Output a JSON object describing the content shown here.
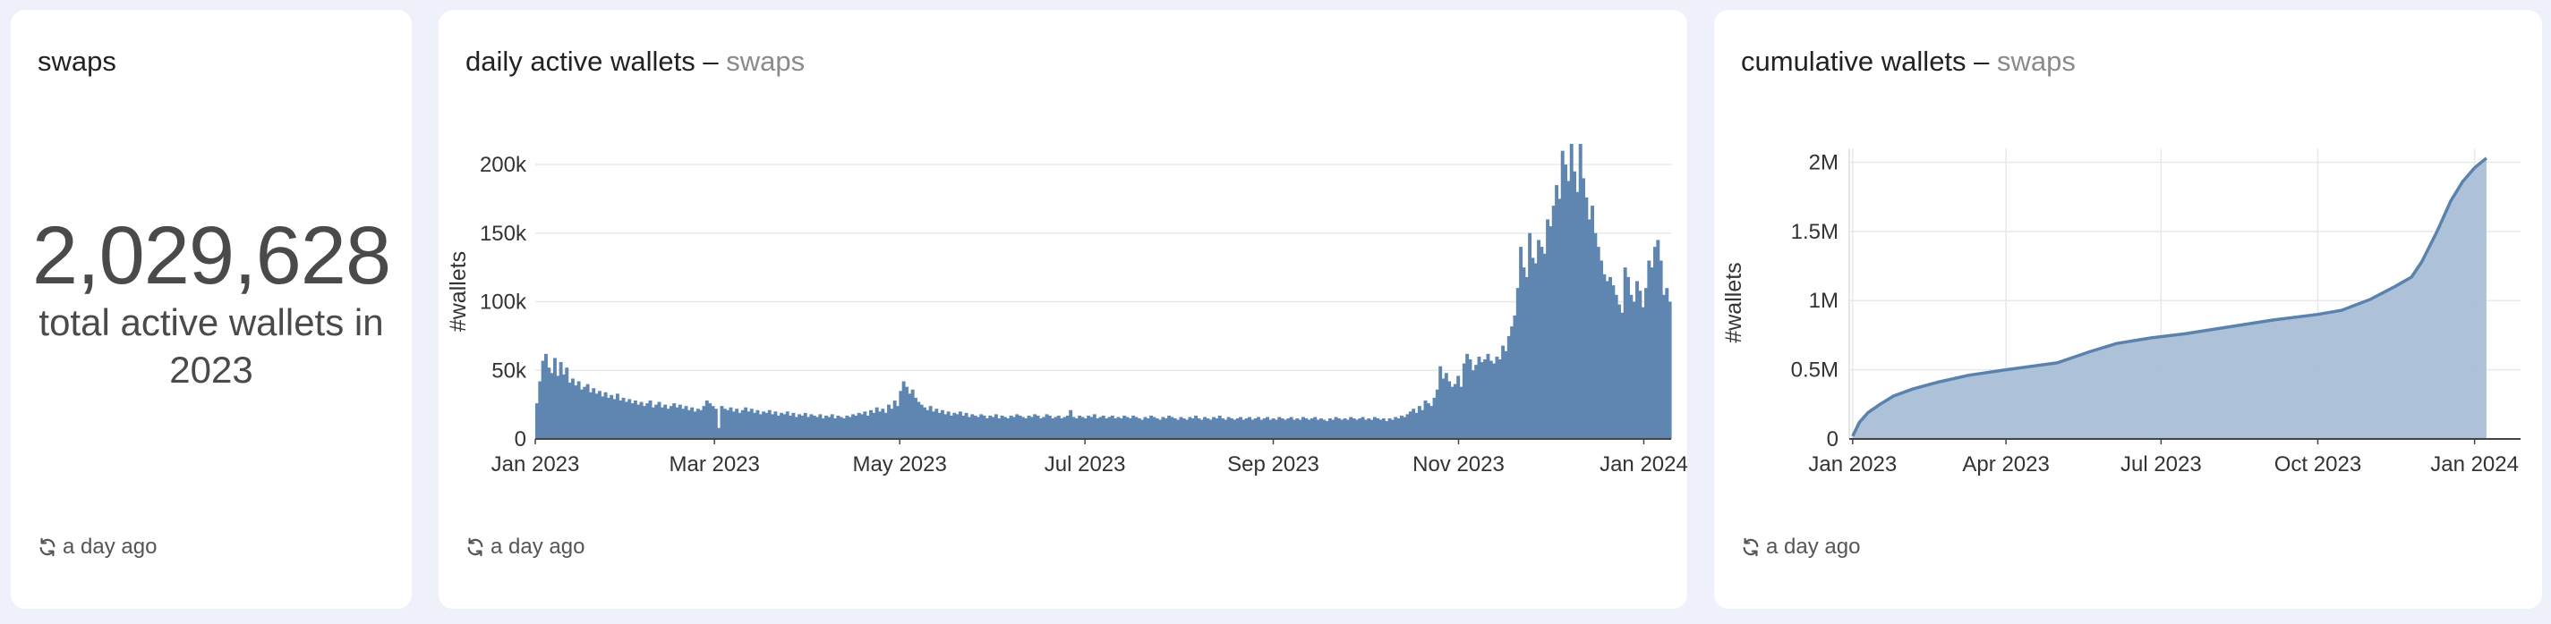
{
  "cards": {
    "counter": {
      "title": "swaps",
      "value": "2,029,628",
      "caption": "total active wallets in 2023",
      "refresh": "a day ago"
    },
    "daily": {
      "title": "daily active wallets",
      "separator": "–",
      "subtitle": "swaps",
      "refresh": "a day ago"
    },
    "cumulative": {
      "title": "cumulative wallets",
      "separator": "–",
      "subtitle": "swaps",
      "refresh": "a day ago"
    }
  },
  "icons": {
    "refresh": "refresh-icon"
  },
  "colors": {
    "bar": "#5f86b0",
    "area_fill": "#a9bfd6",
    "area_line": "#5a82ad",
    "grid": "#e8e8e8",
    "background": "#eef0fa"
  },
  "chart_data": [
    {
      "type": "bar",
      "ylabel": "#wallets",
      "ylim": [
        0,
        215000
      ],
      "yticks": [
        0,
        50000,
        100000,
        150000,
        200000
      ],
      "ytick_labels": [
        "0",
        "50k",
        "100k",
        "150k",
        "200k"
      ],
      "x_start": "2023-01-01",
      "x_end": "2024-01-10",
      "xticks": [
        "2023-01-01",
        "2023-03-01",
        "2023-05-01",
        "2023-07-01",
        "2023-09-01",
        "2023-11-01",
        "2024-01-01"
      ],
      "xtick_labels": [
        "Jan 2023",
        "Mar 2023",
        "May 2023",
        "Jul 2023",
        "Sep 2023",
        "Nov 2023",
        "Jan 2024"
      ],
      "grid": true,
      "series": [
        {
          "values": [
            26000,
            42000,
            57000,
            62000,
            52000,
            48000,
            59000,
            46000,
            56000,
            47000,
            52000,
            41000,
            44000,
            39000,
            42000,
            36000,
            38000,
            40000,
            34000,
            37000,
            33000,
            35000,
            31000,
            34000,
            30000,
            32000,
            29000,
            33000,
            28000,
            30000,
            27000,
            29000,
            26000,
            28000,
            25000,
            27000,
            24000,
            26000,
            28000,
            23000,
            25000,
            27000,
            23000,
            25000,
            22000,
            24000,
            26000,
            23000,
            25000,
            22000,
            24000,
            21000,
            23000,
            20000,
            22000,
            21000,
            24000,
            28000,
            26000,
            24000,
            22000,
            8000,
            24000,
            22000,
            21000,
            23000,
            20000,
            22000,
            19000,
            21000,
            23000,
            20000,
            22000,
            19000,
            21000,
            18000,
            20000,
            19000,
            21000,
            18000,
            20000,
            17000,
            19000,
            18000,
            20000,
            17000,
            19000,
            16000,
            18000,
            17000,
            19000,
            16000,
            18000,
            17000,
            16000,
            18000,
            15000,
            17000,
            16000,
            18000,
            15000,
            17000,
            16000,
            15000,
            17000,
            16000,
            18000,
            17000,
            19000,
            18000,
            20000,
            17000,
            21000,
            19000,
            23000,
            20000,
            22000,
            19000,
            25000,
            22000,
            28000,
            24000,
            35000,
            42000,
            38000,
            33000,
            36000,
            30000,
            27000,
            25000,
            23000,
            21000,
            24000,
            20000,
            22000,
            19000,
            21000,
            18000,
            20000,
            17000,
            19000,
            18000,
            20000,
            17000,
            19000,
            16000,
            18000,
            17000,
            16000,
            18000,
            17000,
            15000,
            17000,
            16000,
            18000,
            15000,
            17000,
            16000,
            15000,
            17000,
            16000,
            18000,
            17000,
            16000,
            15000,
            17000,
            16000,
            18000,
            17000,
            15000,
            16000,
            18000,
            17000,
            15000,
            16000,
            17000,
            15000,
            16000,
            17000,
            21000,
            16000,
            15000,
            17000,
            16000,
            15000,
            17000,
            16000,
            18000,
            15000,
            16000,
            17000,
            15000,
            16000,
            17000,
            15000,
            16000,
            15000,
            17000,
            16000,
            15000,
            17000,
            16000,
            15000,
            14000,
            16000,
            15000,
            17000,
            16000,
            15000,
            14000,
            16000,
            15000,
            17000,
            16000,
            15000,
            14000,
            16000,
            15000,
            14000,
            16000,
            15000,
            17000,
            15000,
            14000,
            16000,
            15000,
            14000,
            16000,
            15000,
            17000,
            15000,
            14000,
            16000,
            15000,
            14000,
            15000,
            16000,
            14000,
            15000,
            16000,
            14000,
            15000,
            16000,
            14000,
            15000,
            16000,
            14000,
            15000,
            14000,
            16000,
            15000,
            14000,
            15000,
            16000,
            14000,
            15000,
            14000,
            16000,
            15000,
            14000,
            15000,
            16000,
            14000,
            15000,
            14000,
            13000,
            15000,
            14000,
            16000,
            15000,
            14000,
            15000,
            14000,
            16000,
            15000,
            14000,
            15000,
            16000,
            14000,
            15000,
            14000,
            16000,
            15000,
            14000,
            15000,
            13000,
            15000,
            14000,
            16000,
            15000,
            17000,
            16000,
            18000,
            20000,
            22000,
            19000,
            24000,
            21000,
            28000,
            26000,
            24000,
            30000,
            36000,
            53000,
            44000,
            48000,
            42000,
            38000,
            40000,
            46000,
            38000,
            55000,
            62000,
            58000,
            50000,
            54000,
            60000,
            56000,
            58000,
            62000,
            57000,
            55000,
            60000,
            58000,
            68000,
            64000,
            75000,
            82000,
            90000,
            110000,
            140000,
            125000,
            118000,
            150000,
            132000,
            128000,
            145000,
            140000,
            135000,
            160000,
            155000,
            170000,
            185000,
            175000,
            210000,
            200000,
            188000,
            215000,
            195000,
            180000,
            215000,
            190000,
            176000,
            160000,
            170000,
            150000,
            140000,
            130000,
            120000,
            115000,
            118000,
            112000,
            105000,
            98000,
            92000,
            125000,
            118000,
            105000,
            100000,
            115000,
            108000,
            96000,
            110000,
            130000,
            125000,
            140000,
            145000,
            130000,
            105000,
            110000,
            100000
          ]
        }
      ]
    },
    {
      "type": "area",
      "ylabel": "#wallets",
      "ylim": [
        0,
        2100000
      ],
      "yticks": [
        0,
        500000,
        1000000,
        1500000,
        2000000
      ],
      "ytick_labels": [
        "0",
        "0.5M",
        "1M",
        "1.5M",
        "2M"
      ],
      "x_start": "2022-12-30",
      "x_end": "2024-01-28",
      "xticks": [
        "2023-01-01",
        "2023-04-01",
        "2023-07-01",
        "2023-10-01",
        "2024-01-01"
      ],
      "xtick_labels": [
        "Jan 2023",
        "Apr 2023",
        "Jul 2023",
        "Oct 2023",
        "Jan 2024"
      ],
      "grid": true,
      "series": [
        {
          "x": [
            "2023-01-01",
            "2023-01-05",
            "2023-01-10",
            "2023-01-17",
            "2023-01-25",
            "2023-02-05",
            "2023-02-20",
            "2023-03-10",
            "2023-04-01",
            "2023-05-01",
            "2023-05-20",
            "2023-06-05",
            "2023-06-25",
            "2023-07-15",
            "2023-08-10",
            "2023-09-05",
            "2023-10-01",
            "2023-10-15",
            "2023-11-01",
            "2023-11-15",
            "2023-11-25",
            "2023-12-01",
            "2023-12-10",
            "2023-12-18",
            "2023-12-25",
            "2024-01-01",
            "2024-01-08"
          ],
          "values": [
            20000,
            120000,
            190000,
            250000,
            310000,
            360000,
            410000,
            460000,
            500000,
            550000,
            630000,
            690000,
            730000,
            760000,
            810000,
            860000,
            900000,
            930000,
            1010000,
            1100000,
            1170000,
            1280000,
            1500000,
            1720000,
            1860000,
            1960000,
            2030000
          ]
        }
      ]
    }
  ]
}
